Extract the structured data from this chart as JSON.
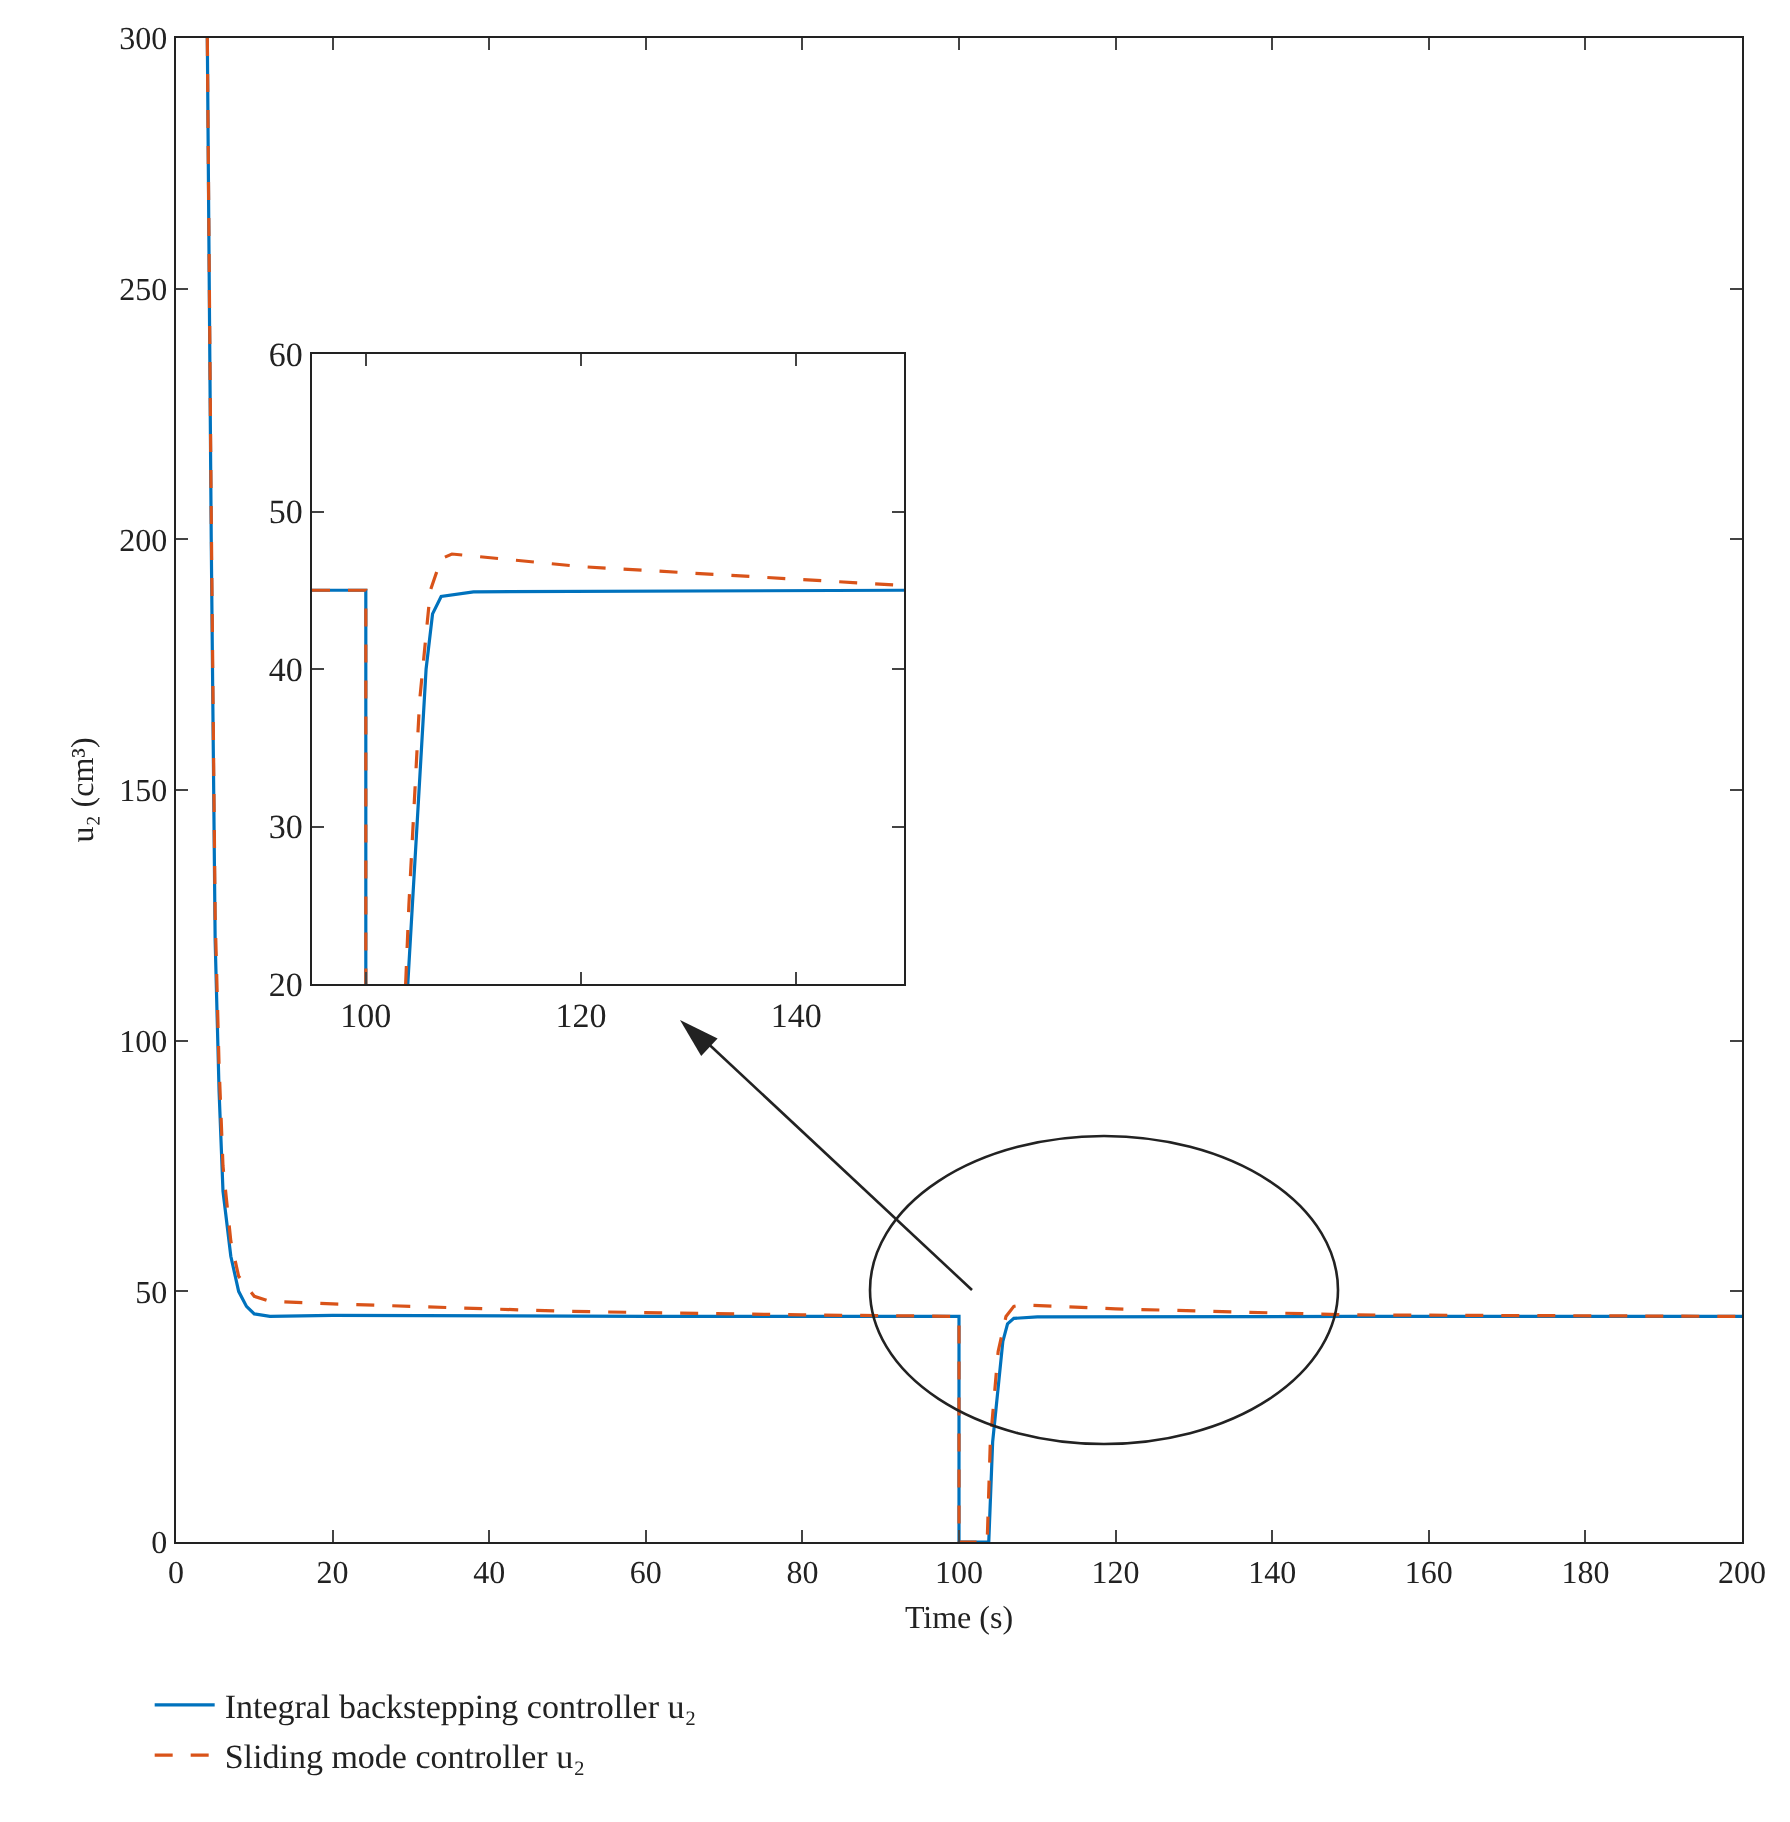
{
  "chart_data": [
    {
      "type": "line",
      "xlabel": "Time (s)",
      "ylabel": "u₂ (cm³)",
      "xlim": [
        0,
        200
      ],
      "ylim": [
        0,
        300
      ],
      "xticks": [
        0,
        20,
        40,
        60,
        80,
        100,
        120,
        140,
        160,
        180,
        200
      ],
      "yticks": [
        0,
        50,
        100,
        150,
        200,
        250,
        300
      ],
      "legend": "bottom left",
      "series": [
        {
          "name": "Integral backstepping controller u₂",
          "color": "#0072bd",
          "line_style": "solid",
          "x": [
            4,
            4.5,
            5,
            5.5,
            6,
            7,
            8,
            9,
            10,
            12,
            20,
            60,
            100,
            100,
            103.8,
            104.3,
            105.6,
            106.2,
            107,
            110,
            150,
            200
          ],
          "values": [
            300,
            200,
            120,
            90,
            70,
            57,
            50,
            47,
            45.5,
            45,
            45.2,
            45,
            45,
            0,
            0,
            20,
            40,
            43.5,
            44.6,
            44.9,
            45,
            45
          ]
        },
        {
          "name": "Sliding mode controller u₂",
          "color": "#d95319",
          "line_style": "dashed",
          "x": [
            4,
            4.5,
            5,
            5.5,
            6,
            7,
            8,
            10,
            12,
            20,
            50,
            80,
            100,
            100,
            103.6,
            104,
            105,
            106,
            107,
            108,
            120,
            150,
            200
          ],
          "values": [
            300,
            205,
            125,
            95,
            75,
            60,
            53,
            49,
            48,
            47.5,
            46,
            45.3,
            45,
            0,
            0,
            20,
            38,
            45,
            47,
            47.3,
            46.5,
            45.3,
            45
          ]
        }
      ]
    },
    {
      "type": "line",
      "xlim": [
        95,
        150
      ],
      "ylim": [
        20,
        60
      ],
      "xticks": [
        100,
        120,
        140
      ],
      "yticks": [
        20,
        30,
        40,
        50,
        60
      ],
      "series": [
        {
          "color": "#0072bd",
          "line_style": "solid",
          "x": [
            95,
            100,
            100,
            102,
            103.9,
            105.6,
            106.2,
            107,
            110,
            150
          ],
          "values": [
            45,
            45,
            20,
            null,
            20,
            40,
            43.5,
            44.6,
            44.9,
            45
          ]
        },
        {
          "color": "#d95319",
          "line_style": "dashed",
          "x": [
            95,
            100,
            100,
            102,
            103.7,
            104,
            105,
            106,
            107,
            108,
            120,
            150
          ],
          "values": [
            45,
            45,
            20,
            null,
            20,
            25,
            38,
            45,
            47,
            47.3,
            46.5,
            45.3
          ]
        }
      ]
    }
  ]
}
